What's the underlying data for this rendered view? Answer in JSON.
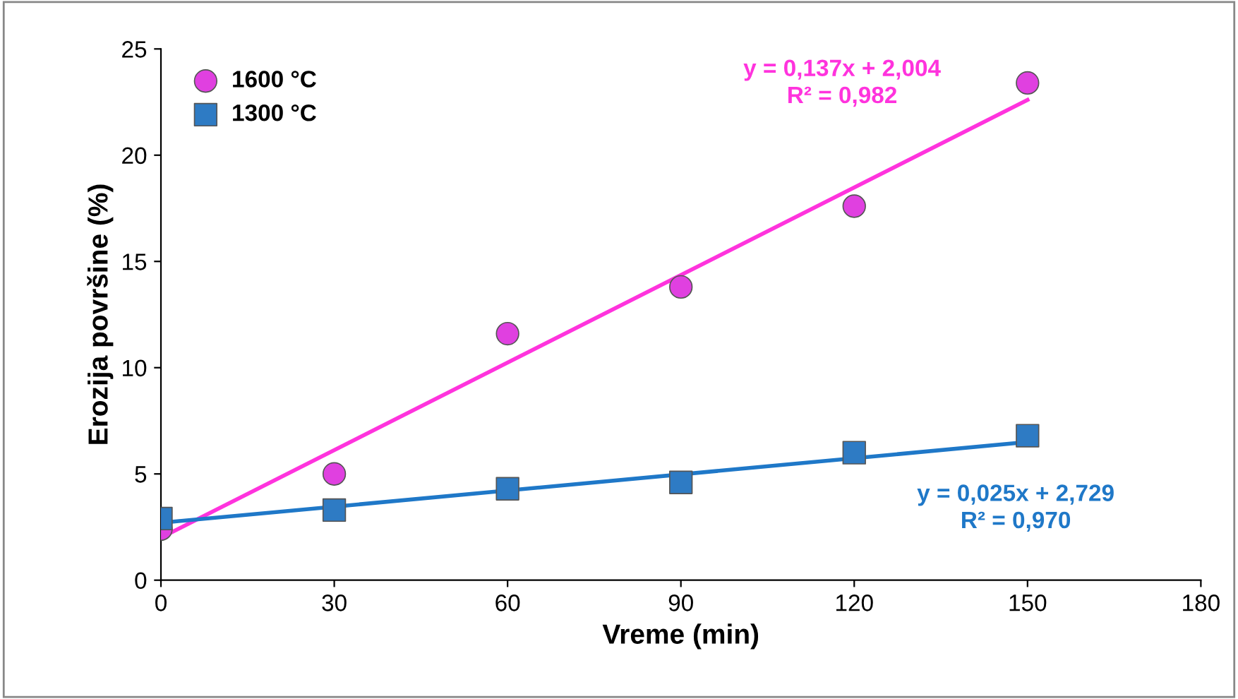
{
  "chart_data": {
    "type": "scatter",
    "xlabel": "Vreme (min)",
    "ylabel": "Erozija površine (%)",
    "xlim": [
      0,
      180
    ],
    "xticks": [
      0,
      30,
      60,
      90,
      120,
      150,
      180
    ],
    "ylim": [
      0,
      25
    ],
    "yticks": [
      0,
      5,
      10,
      15,
      20,
      25
    ],
    "grid": false,
    "legend": "top left",
    "series": [
      {
        "name": "1600 °C",
        "color": "#e040e0",
        "marker": "circle",
        "x": [
          0,
          30,
          60,
          90,
          120,
          150
        ],
        "values": [
          2.4,
          5.0,
          11.6,
          13.8,
          17.6,
          23.4
        ]
      },
      {
        "name": "1300 °C",
        "color": "#2e7bc4",
        "marker": "square",
        "x": [
          0,
          30,
          60,
          90,
          120,
          150
        ],
        "values": [
          2.9,
          3.3,
          4.3,
          4.6,
          6.0,
          6.8
        ]
      },
      {
        "type": "line",
        "color": "#ff33dd",
        "x": [
          0,
          150
        ],
        "values": [
          2.0,
          22.6
        ]
      },
      {
        "type": "line",
        "color": "#1f78c8",
        "x": [
          0,
          150
        ],
        "values": [
          2.7,
          6.5
        ]
      }
    ],
    "annotations": [
      "y = 0,137x + 2,004\nR² = 0,982",
      "y = 0,025x + 2,729\nR² = 0,970"
    ]
  }
}
